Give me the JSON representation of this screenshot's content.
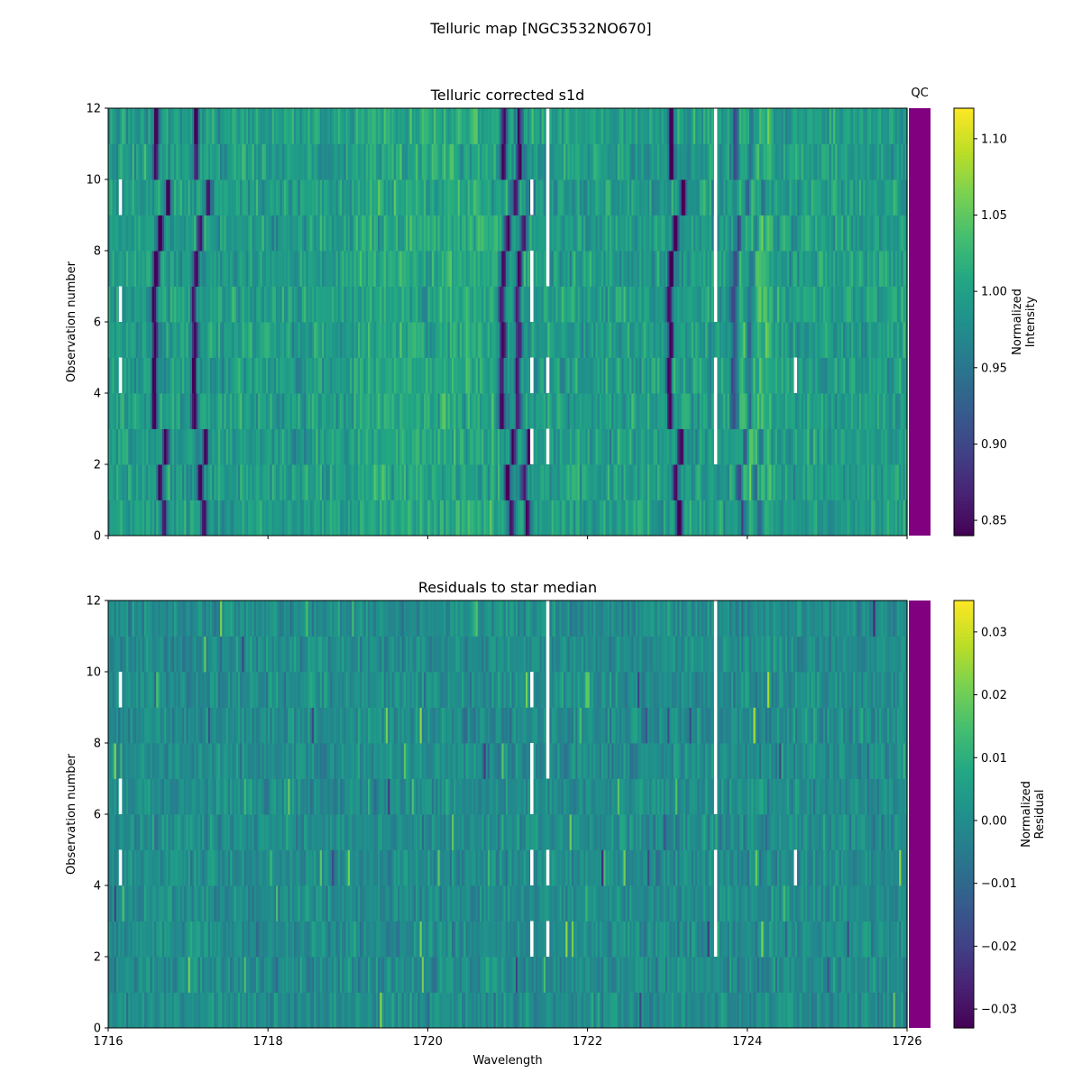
{
  "figure_title": "Telluric map [NGC3532NO670]",
  "chart_data": [
    {
      "type": "heatmap",
      "title": "Telluric corrected s1d",
      "xlabel": "",
      "ylabel": "Observation number",
      "xlim": [
        1716,
        1726
      ],
      "ylim": [
        0,
        12
      ],
      "xticks": [
        1716,
        1718,
        1720,
        1722,
        1724,
        1726
      ],
      "yticks": [
        0,
        2,
        4,
        6,
        8,
        10,
        12
      ],
      "rows": 12,
      "colormap": "viridis",
      "absorption_lines": [
        {
          "center": 1716.6,
          "depth": 1.0
        },
        {
          "center": 1717.1,
          "depth": 0.95
        },
        {
          "center": 1720.95,
          "depth": 1.0
        },
        {
          "center": 1721.15,
          "depth": 0.85
        },
        {
          "center": 1723.05,
          "depth": 1.0
        },
        {
          "center": 1723.85,
          "depth": 0.6
        },
        {
          "center": 1724.05,
          "depth": 0.5
        }
      ],
      "row_shift": [
        0.1,
        0.05,
        0.12,
        -0.02,
        -0.03,
        -0.01,
        -0.03,
        0.0,
        0.05,
        0.15,
        0.0,
        0.0
      ],
      "colorbar": {
        "label": [
          "Normalized",
          "Intensity"
        ],
        "min": 0.84,
        "max": 1.12,
        "ticks": [
          0.85,
          0.9,
          0.95,
          1.0,
          1.05,
          1.1
        ],
        "ticklabels": [
          "0.85",
          "0.90",
          "0.95",
          "1.00",
          "1.05",
          "1.10"
        ]
      },
      "qc": {
        "label": "QC",
        "color": "#800080"
      }
    },
    {
      "type": "heatmap",
      "title": "Residuals to star median",
      "xlabel": "Wavelength",
      "ylabel": "Observation number",
      "xlim": [
        1716,
        1726
      ],
      "ylim": [
        0,
        12
      ],
      "xticks": [
        1716,
        1718,
        1720,
        1722,
        1724,
        1726
      ],
      "yticks": [
        0,
        2,
        4,
        6,
        8,
        10,
        12
      ],
      "rows": 12,
      "colormap": "viridis",
      "colorbar": {
        "label": [
          "Normalized",
          "Residual"
        ],
        "min": -0.033,
        "max": 0.035,
        "ticks": [
          -0.03,
          -0.02,
          -0.01,
          0.0,
          0.01,
          0.02,
          0.03
        ],
        "ticklabels": [
          "−0.03",
          "−0.02",
          "−0.01",
          "0.00",
          "0.01",
          "0.02",
          "0.03"
        ]
      },
      "qc": {
        "label": "",
        "color": "#800080"
      }
    }
  ],
  "masked_gaps": [
    {
      "row": 9,
      "x": 1716.15
    },
    {
      "row": 9,
      "x": 1721.3
    },
    {
      "row": 9,
      "x": 1721.5
    },
    {
      "row": 9,
      "x": 1723.6
    },
    {
      "row": 7,
      "x": 1721.3
    },
    {
      "row": 7,
      "x": 1721.5
    },
    {
      "row": 7,
      "x": 1723.6
    },
    {
      "row": 6,
      "x": 1716.15
    },
    {
      "row": 6,
      "x": 1721.3
    },
    {
      "row": 6,
      "x": 1723.6
    },
    {
      "row": 4,
      "x": 1716.15
    },
    {
      "row": 4,
      "x": 1721.3
    },
    {
      "row": 4,
      "x": 1721.5
    },
    {
      "row": 4,
      "x": 1723.6
    },
    {
      "row": 4,
      "x": 1724.6
    },
    {
      "row": 2,
      "x": 1721.3
    },
    {
      "row": 2,
      "x": 1721.5
    },
    {
      "row": 2,
      "x": 1723.6
    },
    {
      "row": 11,
      "x": 1721.5
    },
    {
      "row": 11,
      "x": 1723.6
    },
    {
      "row": 10,
      "x": 1721.5
    },
    {
      "row": 10,
      "x": 1723.6
    },
    {
      "row": 8,
      "x": 1721.5
    },
    {
      "row": 8,
      "x": 1723.6
    },
    {
      "row": 3,
      "x": 1723.6
    }
  ]
}
